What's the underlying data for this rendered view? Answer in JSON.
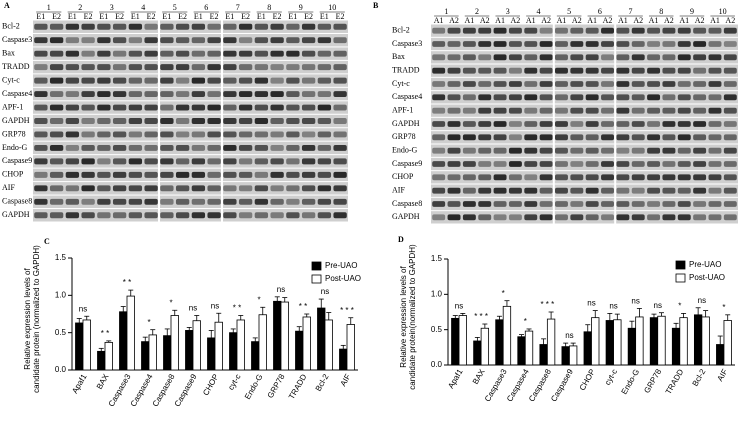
{
  "blots": [
    {
      "label": "A",
      "lanes": [
        "1",
        "2",
        "3",
        "4",
        "5",
        "6",
        "7",
        "8",
        "9",
        "10"
      ],
      "sublanes": [
        "E1",
        "E2"
      ],
      "rows": [
        "Bcl-2",
        "Caspase3",
        "Bax",
        "TRADD",
        "Cyt-c",
        "Caspase4",
        "APF-1",
        "GAPDH",
        "GRP78",
        "Endo-G",
        "Caspase9",
        "CHOP",
        "AIF",
        "Caspase8",
        "GAPDH"
      ]
    },
    {
      "label": "B",
      "lanes": [
        "1",
        "2",
        "3",
        "4",
        "5",
        "6",
        "7",
        "8",
        "9",
        "10"
      ],
      "sublanes": [
        "A1",
        "A2"
      ],
      "rows": [
        "Bcl-2",
        "Caspase3",
        "Bax",
        "TRADD",
        "Cyt-c",
        "Caspase4",
        "APF-1",
        "GAPDH",
        "GRP78",
        "Endo-G",
        "Caspase9",
        "CHOP",
        "AIF",
        "Caspase8",
        "GAPDH"
      ]
    }
  ],
  "chart_data": [
    {
      "type": "bar",
      "label": "C",
      "ylabel": [
        "Relative expression levels of",
        "candidate protein (normalized to GAPDH)"
      ],
      "categories": [
        "Apaf1",
        "BAX",
        "Caspase3",
        "Caspase4",
        "Caspase8",
        "Caspase9",
        "CHOP",
        "cyt-c",
        "Endo-G",
        "GRP78",
        "TRADD",
        "Bcl-2",
        "AIF"
      ],
      "series": [
        {
          "name": "Pre-UAO",
          "color": "#000000",
          "values": [
            0.63,
            0.25,
            0.78,
            0.38,
            0.46,
            0.53,
            0.43,
            0.5,
            0.38,
            0.92,
            0.52,
            0.83,
            0.28
          ],
          "errors": [
            0.06,
            0.04,
            0.07,
            0.06,
            0.09,
            0.04,
            0.1,
            0.05,
            0.05,
            0.06,
            0.06,
            0.12,
            0.05
          ]
        },
        {
          "name": "Post-UAO",
          "color": "#ffffff",
          "values": [
            0.67,
            0.37,
            0.99,
            0.47,
            0.73,
            0.66,
            0.64,
            0.67,
            0.74,
            0.91,
            0.71,
            0.67,
            0.61
          ],
          "errors": [
            0.05,
            0.02,
            0.08,
            0.07,
            0.07,
            0.07,
            0.12,
            0.06,
            0.1,
            0.06,
            0.04,
            0.1,
            0.09
          ]
        }
      ],
      "annotations": [
        "ns",
        "* *",
        "* *",
        "*",
        "*",
        "ns",
        "ns",
        "* *",
        "*",
        "ns",
        "* *",
        "ns",
        "* * *"
      ],
      "ylim": [
        0,
        1.5
      ],
      "yticks": [
        {
          "value": 0,
          "label": "0.0"
        },
        0.5,
        {
          "value": 1,
          "label": "1.0"
        },
        1.5
      ],
      "legend": "upper right"
    },
    {
      "type": "bar",
      "label": "D",
      "ylabel": [
        "Relative expression levels of",
        "candidate protein(normalized to GAPDH)"
      ],
      "categories": [
        "Apaf1",
        "BAX",
        "Caspase3",
        "Caspase4",
        "Caspase8",
        "Caspase9",
        "CHOP",
        "cyt-c",
        "Endo-G",
        "GRP78",
        "TRADD",
        "Bcl-2",
        "AIF"
      ],
      "series": [
        {
          "name": "Pre-UAO",
          "color": "#000000",
          "values": [
            0.66,
            0.34,
            0.64,
            0.4,
            0.29,
            0.26,
            0.47,
            0.63,
            0.52,
            0.67,
            0.52,
            0.71,
            0.29
          ],
          "errors": [
            0.04,
            0.05,
            0.05,
            0.03,
            0.08,
            0.05,
            0.1,
            0.1,
            0.1,
            0.05,
            0.07,
            0.1,
            0.12
          ]
        },
        {
          "name": "Post-UAO",
          "color": "#ffffff",
          "values": [
            0.7,
            0.52,
            0.83,
            0.48,
            0.65,
            0.27,
            0.67,
            0.64,
            0.68,
            0.69,
            0.67,
            0.68,
            0.63
          ],
          "errors": [
            0.03,
            0.06,
            0.08,
            0.03,
            0.1,
            0.04,
            0.1,
            0.08,
            0.12,
            0.05,
            0.06,
            0.09,
            0.08
          ]
        }
      ],
      "annotations": [
        "ns",
        "* * *",
        "*",
        "*",
        "* * *",
        "ns",
        "ns",
        "ns",
        "ns",
        "ns",
        "*",
        "ns",
        "*"
      ],
      "ylim": [
        0,
        1.5
      ],
      "yticks": [
        {
          "value": 0,
          "label": "0.0"
        },
        0.5,
        {
          "value": 1,
          "label": "1.0"
        },
        1.5
      ],
      "legend": "upper right"
    }
  ]
}
